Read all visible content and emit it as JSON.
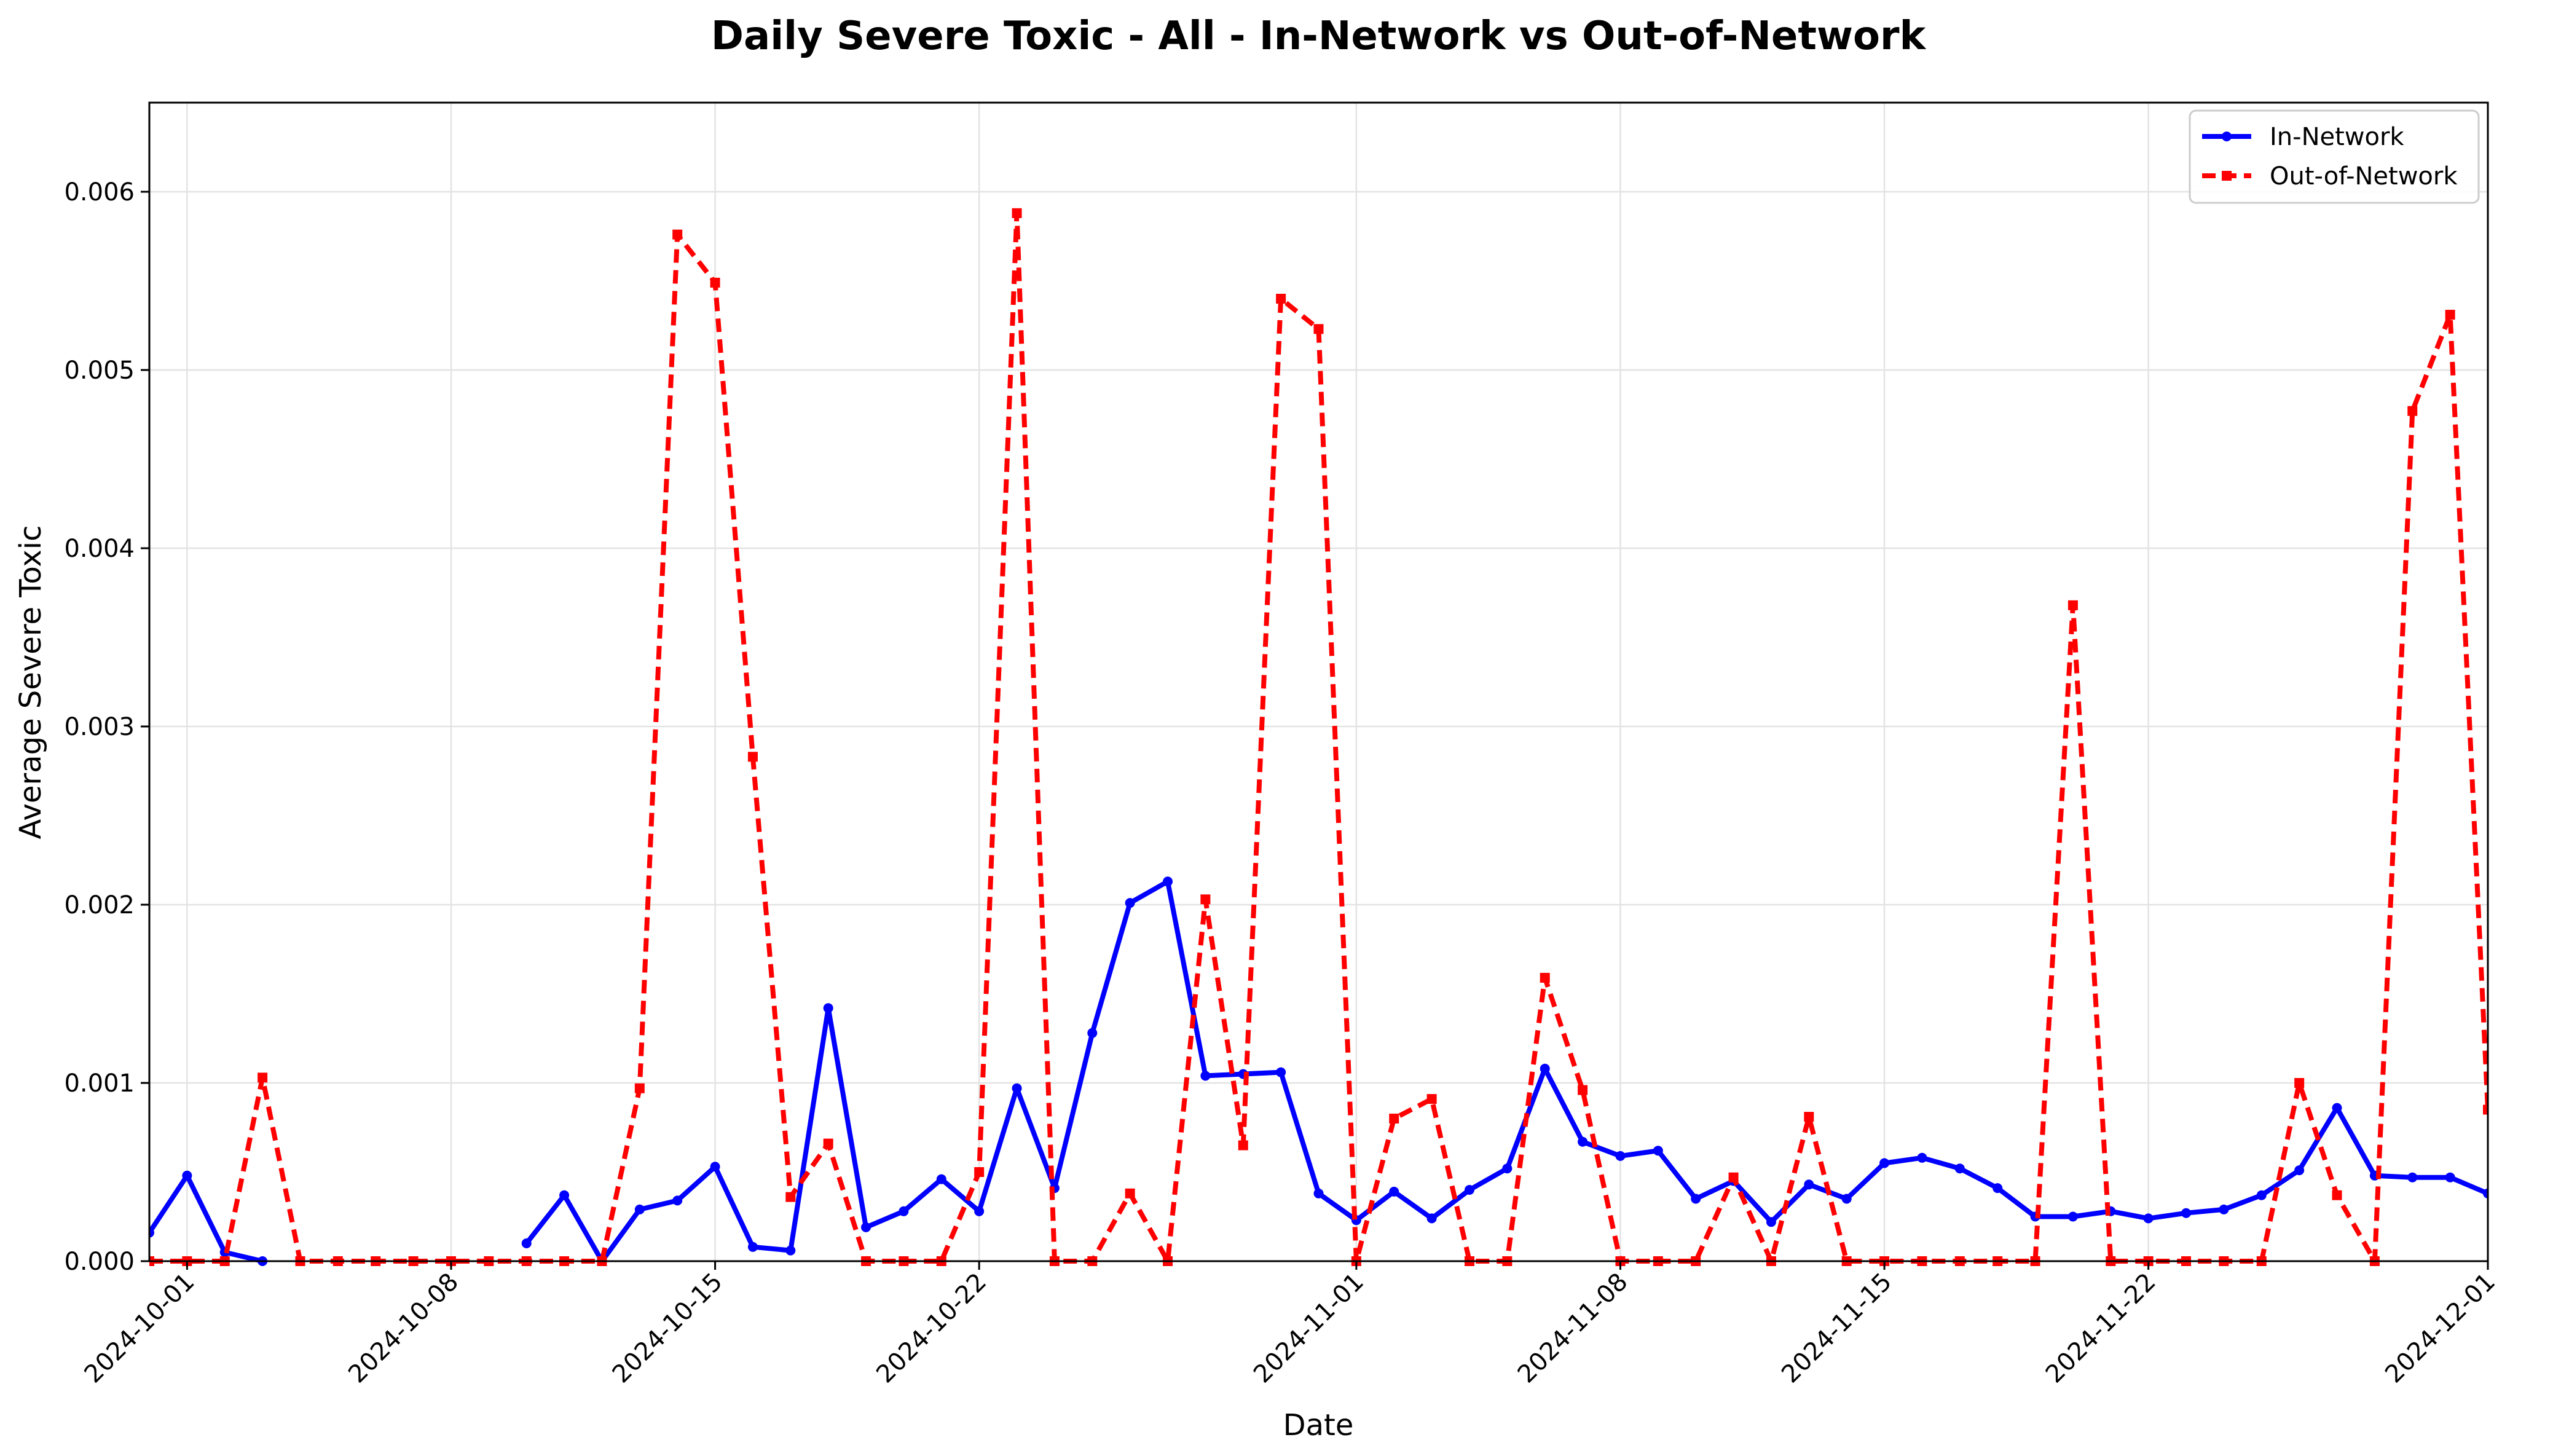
{
  "chart_data": {
    "type": "line",
    "title": "Daily Severe Toxic - All - In-Network vs Out-of-Network",
    "xlabel": "Date",
    "ylabel": "Average Severe Toxic",
    "xlim": [
      "2024-09-30",
      "2024-12-01"
    ],
    "ylim": [
      0,
      0.0065
    ],
    "grid": true,
    "legend_position": "top-right",
    "x_ticks": [
      "2024-10-01",
      "2024-10-08",
      "2024-10-15",
      "2024-10-22",
      "2024-11-01",
      "2024-11-08",
      "2024-11-15",
      "2024-11-22",
      "2024-12-01"
    ],
    "y_ticks": [
      "0.000",
      "0.001",
      "0.002",
      "0.003",
      "0.004",
      "0.005",
      "0.006"
    ],
    "y_tick_values": [
      0,
      0.001,
      0.002,
      0.003,
      0.004,
      0.005,
      0.006
    ],
    "series": [
      {
        "name": "In-Network",
        "color": "#0000ff",
        "style": "solid",
        "marker": "circle",
        "points": [
          [
            "2024-09-30",
            0.00016
          ],
          [
            "2024-10-01",
            0.00048
          ],
          [
            "2024-10-02",
            5e-05
          ],
          [
            "2024-10-03",
            0.0
          ],
          [
            "2024-10-10",
            0.0001
          ],
          [
            "2024-10-11",
            0.00037
          ],
          [
            "2024-10-12",
            0.0
          ],
          [
            "2024-10-13",
            0.00029
          ],
          [
            "2024-10-14",
            0.00034
          ],
          [
            "2024-10-15",
            0.00053
          ],
          [
            "2024-10-16",
            8e-05
          ],
          [
            "2024-10-17",
            6e-05
          ],
          [
            "2024-10-18",
            0.00142
          ],
          [
            "2024-10-19",
            0.00019
          ],
          [
            "2024-10-20",
            0.00028
          ],
          [
            "2024-10-21",
            0.00046
          ],
          [
            "2024-10-22",
            0.00028
          ],
          [
            "2024-10-23",
            0.00097
          ],
          [
            "2024-10-24",
            0.00041
          ],
          [
            "2024-10-25",
            0.00128
          ],
          [
            "2024-10-26",
            0.00201
          ],
          [
            "2024-10-27",
            0.00213
          ],
          [
            "2024-10-28",
            0.00104
          ],
          [
            "2024-10-29",
            0.00105
          ],
          [
            "2024-10-30",
            0.00106
          ],
          [
            "2024-10-31",
            0.00038
          ],
          [
            "2024-11-01",
            0.00023
          ],
          [
            "2024-11-02",
            0.00039
          ],
          [
            "2024-11-03",
            0.00024
          ],
          [
            "2024-11-04",
            0.0004
          ],
          [
            "2024-11-05",
            0.00052
          ],
          [
            "2024-11-06",
            0.00108
          ],
          [
            "2024-11-07",
            0.00067
          ],
          [
            "2024-11-08",
            0.00059
          ],
          [
            "2024-11-09",
            0.00062
          ],
          [
            "2024-11-10",
            0.00035
          ],
          [
            "2024-11-11",
            0.00045
          ],
          [
            "2024-11-12",
            0.00022
          ],
          [
            "2024-11-13",
            0.00043
          ],
          [
            "2024-11-14",
            0.00035
          ],
          [
            "2024-11-15",
            0.00055
          ],
          [
            "2024-11-16",
            0.00058
          ],
          [
            "2024-11-17",
            0.00052
          ],
          [
            "2024-11-18",
            0.00041
          ],
          [
            "2024-11-19",
            0.00025
          ],
          [
            "2024-11-20",
            0.00025
          ],
          [
            "2024-11-21",
            0.00028
          ],
          [
            "2024-11-22",
            0.00024
          ],
          [
            "2024-11-23",
            0.00027
          ],
          [
            "2024-11-24",
            0.00029
          ],
          [
            "2024-11-25",
            0.00037
          ],
          [
            "2024-11-26",
            0.00051
          ],
          [
            "2024-11-27",
            0.00086
          ],
          [
            "2024-11-28",
            0.00048
          ],
          [
            "2024-11-29",
            0.00047
          ],
          [
            "2024-11-30",
            0.00047
          ],
          [
            "2024-12-01",
            0.00038
          ]
        ]
      },
      {
        "name": "Out-of-Network",
        "color": "#ff0000",
        "style": "dashed",
        "marker": "square",
        "points": [
          [
            "2024-09-30",
            0.0
          ],
          [
            "2024-10-01",
            0.0
          ],
          [
            "2024-10-02",
            0.0
          ],
          [
            "2024-10-03",
            0.00103
          ],
          [
            "2024-10-04",
            0.0
          ],
          [
            "2024-10-05",
            0.0
          ],
          [
            "2024-10-06",
            0.0
          ],
          [
            "2024-10-07",
            0.0
          ],
          [
            "2024-10-08",
            0.0
          ],
          [
            "2024-10-09",
            0.0
          ],
          [
            "2024-10-10",
            0.0
          ],
          [
            "2024-10-11",
            0.0
          ],
          [
            "2024-10-12",
            0.0
          ],
          [
            "2024-10-13",
            0.00097
          ],
          [
            "2024-10-14",
            0.00576
          ],
          [
            "2024-10-15",
            0.00549
          ],
          [
            "2024-10-16",
            0.00283
          ],
          [
            "2024-10-17",
            0.00036
          ],
          [
            "2024-10-18",
            0.00066
          ],
          [
            "2024-10-19",
            0.0
          ],
          [
            "2024-10-20",
            0.0
          ],
          [
            "2024-10-21",
            0.0
          ],
          [
            "2024-10-22",
            0.0005
          ],
          [
            "2024-10-23",
            0.00588
          ],
          [
            "2024-10-24",
            0.0
          ],
          [
            "2024-10-25",
            0.0
          ],
          [
            "2024-10-26",
            0.00038
          ],
          [
            "2024-10-27",
            0.0
          ],
          [
            "2024-10-28",
            0.00203
          ],
          [
            "2024-10-29",
            0.00065
          ],
          [
            "2024-10-30",
            0.0054
          ],
          [
            "2024-10-31",
            0.00523
          ],
          [
            "2024-11-01",
            0.0
          ],
          [
            "2024-11-02",
            0.0008
          ],
          [
            "2024-11-03",
            0.00091
          ],
          [
            "2024-11-04",
            0.0
          ],
          [
            "2024-11-05",
            0.0
          ],
          [
            "2024-11-06",
            0.00159
          ],
          [
            "2024-11-07",
            0.00096
          ],
          [
            "2024-11-08",
            0.0
          ],
          [
            "2024-11-09",
            0.0
          ],
          [
            "2024-11-10",
            0.0
          ],
          [
            "2024-11-11",
            0.00047
          ],
          [
            "2024-11-12",
            0.0
          ],
          [
            "2024-11-13",
            0.00081
          ],
          [
            "2024-11-14",
            0.0
          ],
          [
            "2024-11-15",
            0.0
          ],
          [
            "2024-11-16",
            0.0
          ],
          [
            "2024-11-17",
            0.0
          ],
          [
            "2024-11-18",
            0.0
          ],
          [
            "2024-11-19",
            0.0
          ],
          [
            "2024-11-20",
            0.00368
          ],
          [
            "2024-11-21",
            0.0
          ],
          [
            "2024-11-22",
            0.0
          ],
          [
            "2024-11-23",
            0.0
          ],
          [
            "2024-11-24",
            0.0
          ],
          [
            "2024-11-25",
            0.0
          ],
          [
            "2024-11-26",
            0.001
          ],
          [
            "2024-11-27",
            0.00037
          ],
          [
            "2024-11-28",
            0.0
          ],
          [
            "2024-11-29",
            0.00477
          ],
          [
            "2024-11-30",
            0.00531
          ],
          [
            "2024-12-01",
            0.00085
          ]
        ]
      }
    ]
  }
}
